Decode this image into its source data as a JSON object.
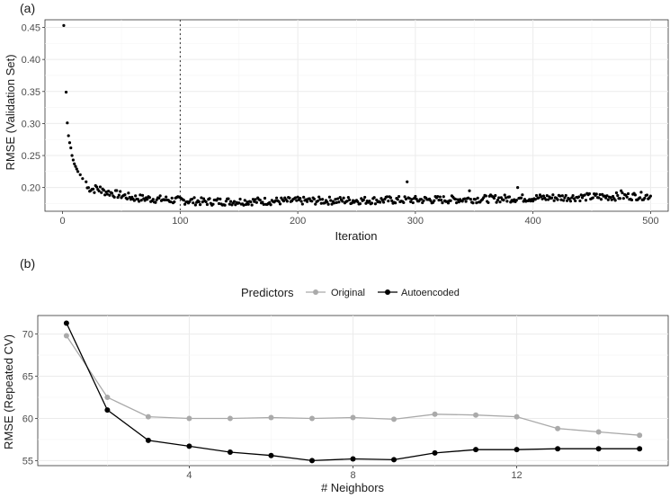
{
  "chart_data": [
    {
      "panel_label": "(a)",
      "type": "scatter",
      "xlabel": "Iteration",
      "ylabel": "RMSE (Validation Set)",
      "xlim": [
        -15,
        515
      ],
      "ylim": [
        0.163,
        0.462
      ],
      "xticks": [
        0,
        100,
        200,
        300,
        400,
        500
      ],
      "yticks": [
        0.2,
        0.25,
        0.3,
        0.35,
        0.4,
        0.45
      ],
      "ytick_labels": [
        "0.20",
        "0.25",
        "0.30",
        "0.35",
        "0.40",
        "0.45"
      ],
      "vline_x": 100,
      "grid": true,
      "point_color": "#000000",
      "highlights": [
        {
          "x": 1,
          "y": 0.453
        },
        {
          "x": 3,
          "y": 0.349
        },
        {
          "x": 4,
          "y": 0.301
        },
        {
          "x": 5,
          "y": 0.281
        },
        {
          "x": 6,
          "y": 0.27
        },
        {
          "x": 7,
          "y": 0.262
        },
        {
          "x": 8,
          "y": 0.25
        },
        {
          "x": 9,
          "y": 0.243
        },
        {
          "x": 10,
          "y": 0.237
        },
        {
          "x": 11,
          "y": 0.233
        },
        {
          "x": 12,
          "y": 0.229
        },
        {
          "x": 13,
          "y": 0.225
        },
        {
          "x": 15,
          "y": 0.22
        },
        {
          "x": 17,
          "y": 0.214
        },
        {
          "x": 20,
          "y": 0.209
        },
        {
          "x": 293,
          "y": 0.209
        },
        {
          "x": 387,
          "y": 0.2
        },
        {
          "x": 346,
          "y": 0.195
        },
        {
          "x": 475,
          "y": 0.195
        },
        {
          "x": 28,
          "y": 0.203
        },
        {
          "x": 32,
          "y": 0.201
        }
      ],
      "noise_summary": {
        "start": 20,
        "end": 500,
        "level_start": 0.2,
        "level_mid": 0.178,
        "level_end": 0.187,
        "spread": 0.006
      }
    },
    {
      "panel_label": "(b)",
      "type": "line",
      "xlabel": "# Neighbors",
      "ylabel": "RMSE (Repeated CV)",
      "x": [
        1,
        2,
        3,
        4,
        5,
        6,
        7,
        8,
        9,
        10,
        11,
        12,
        13,
        14,
        15
      ],
      "xlim": [
        0.3,
        15.7
      ],
      "ylim": [
        54.4,
        72.2
      ],
      "xticks": [
        4,
        8,
        12
      ],
      "yticks": [
        55,
        60,
        65,
        70
      ],
      "grid": true,
      "legend": {
        "title": "Predictors",
        "position": "top"
      },
      "series": [
        {
          "name": "Original",
          "color": "#aaaaaa",
          "values": [
            69.8,
            62.5,
            60.2,
            60.0,
            60.0,
            60.1,
            60.0,
            60.1,
            59.9,
            60.5,
            60.4,
            60.2,
            58.8,
            58.4,
            58.0
          ]
        },
        {
          "name": "Autoencoded",
          "color": "#000000",
          "values": [
            71.3,
            61.0,
            57.4,
            56.7,
            56.0,
            55.6,
            55.0,
            55.2,
            55.1,
            55.9,
            56.3,
            56.3,
            56.4,
            56.4,
            56.4
          ]
        }
      ]
    }
  ]
}
